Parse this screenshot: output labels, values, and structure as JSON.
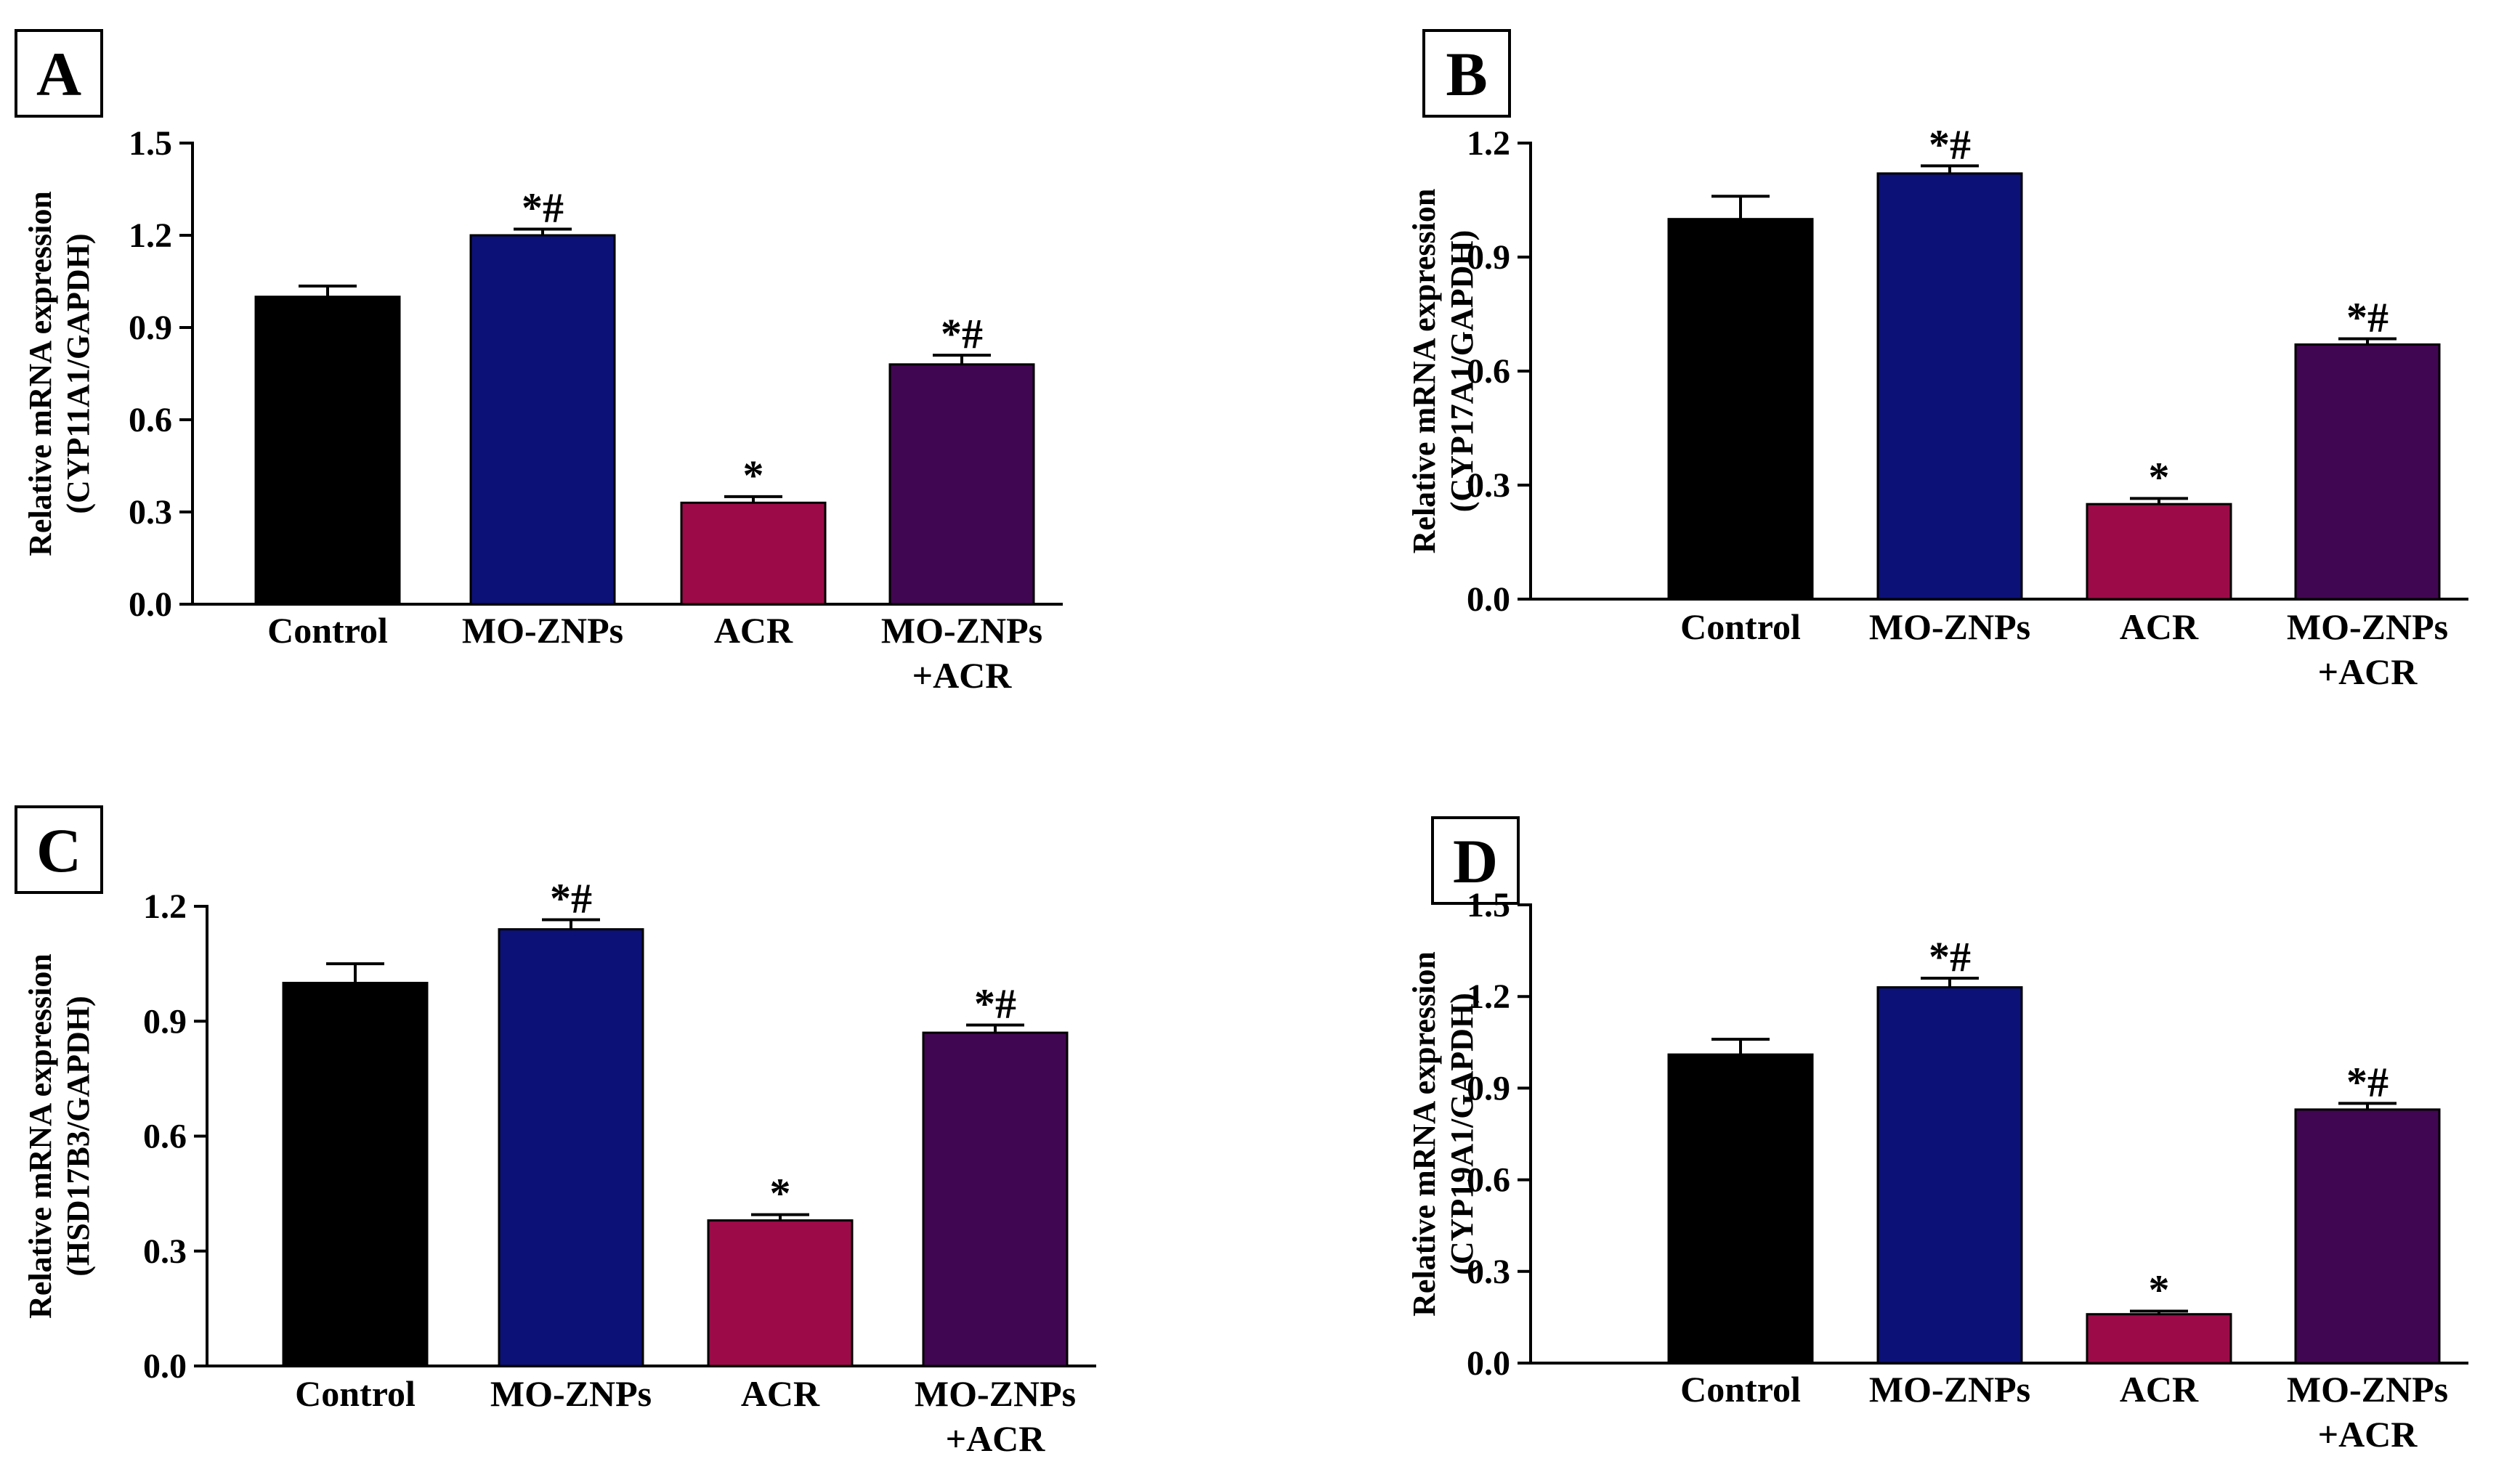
{
  "colors": {
    "Control": "#000000",
    "MO-ZNPs": "#0c1178",
    "ACR": "#9c0b47",
    "MO-ZNPs+ACR": "#410651"
  },
  "chart_data": [
    {
      "type": "bar",
      "panel": "A",
      "categories": [
        [
          "Control"
        ],
        [
          "MO-ZNPs"
        ],
        [
          "ACR"
        ],
        [
          "MO-ZNPs",
          "+ACR"
        ]
      ],
      "values": [
        1.0,
        1.2,
        0.33,
        0.78
      ],
      "errors": [
        0.035,
        0.02,
        0.02,
        0.03
      ],
      "annotations": [
        "",
        "*#",
        "*",
        "*#"
      ],
      "ylabel": [
        "Relative mRNA expression",
        "(CYP11A1/GAPDH)"
      ],
      "ylim": [
        0,
        1.5
      ],
      "ticks": [
        0.0,
        0.3,
        0.6,
        0.9,
        1.2,
        1.5
      ],
      "tick_labels": [
        "0.0",
        "0.3",
        "0.6",
        "0.9",
        "1.2",
        "1.5"
      ]
    },
    {
      "type": "bar",
      "panel": "B",
      "categories": [
        [
          "Control"
        ],
        [
          "MO-ZNPs"
        ],
        [
          "ACR"
        ],
        [
          "MO-ZNPs",
          "+ACR"
        ]
      ],
      "values": [
        1.0,
        1.12,
        0.25,
        0.67
      ],
      "errors": [
        0.06,
        0.02,
        0.015,
        0.015
      ],
      "annotations": [
        "",
        "*#",
        "*",
        "*#"
      ],
      "ylabel": [
        "Relative mRNA expression",
        "(CYP17A1/GAPDH)"
      ],
      "ylim": [
        0,
        1.2
      ],
      "ticks": [
        0.0,
        0.3,
        0.6,
        0.9,
        1.2
      ],
      "tick_labels": [
        "0.0",
        "0.3",
        "0.6",
        "0.9",
        "1.2"
      ]
    },
    {
      "type": "bar",
      "panel": "C",
      "categories": [
        [
          "Control"
        ],
        [
          "MO-ZNPs"
        ],
        [
          "ACR"
        ],
        [
          "MO-ZNPs",
          "+ACR"
        ]
      ],
      "values": [
        1.0,
        1.14,
        0.38,
        0.87
      ],
      "errors": [
        0.05,
        0.025,
        0.015,
        0.02
      ],
      "annotations": [
        "",
        "*#",
        "*",
        "*#"
      ],
      "ylabel": [
        "Relative mRNA expression",
        "(HSD17B3/GAPDH)"
      ],
      "ylim": [
        0,
        1.2
      ],
      "ticks": [
        0.0,
        0.3,
        0.6,
        0.9,
        1.2
      ],
      "tick_labels": [
        "0.0",
        "0.3",
        "0.6",
        "0.9",
        "1.2"
      ]
    },
    {
      "type": "bar",
      "panel": "D",
      "categories": [
        [
          "Control"
        ],
        [
          "MO-ZNPs"
        ],
        [
          "ACR"
        ],
        [
          "MO-ZNPs",
          "+ACR"
        ]
      ],
      "values": [
        1.01,
        1.23,
        0.16,
        0.83
      ],
      "errors": [
        0.05,
        0.03,
        0.01,
        0.02
      ],
      "annotations": [
        "",
        "*#",
        "*",
        "*#"
      ],
      "ylabel": [
        "Relative mRNA expression",
        "(CYP19A1/GAPDH)"
      ],
      "ylim": [
        0,
        1.5
      ],
      "ticks": [
        0.0,
        0.3,
        0.6,
        0.9,
        1.2,
        1.5
      ],
      "tick_labels": [
        "0.0",
        "0.3",
        "0.6",
        "0.9",
        "1.2",
        "1.5"
      ]
    }
  ]
}
